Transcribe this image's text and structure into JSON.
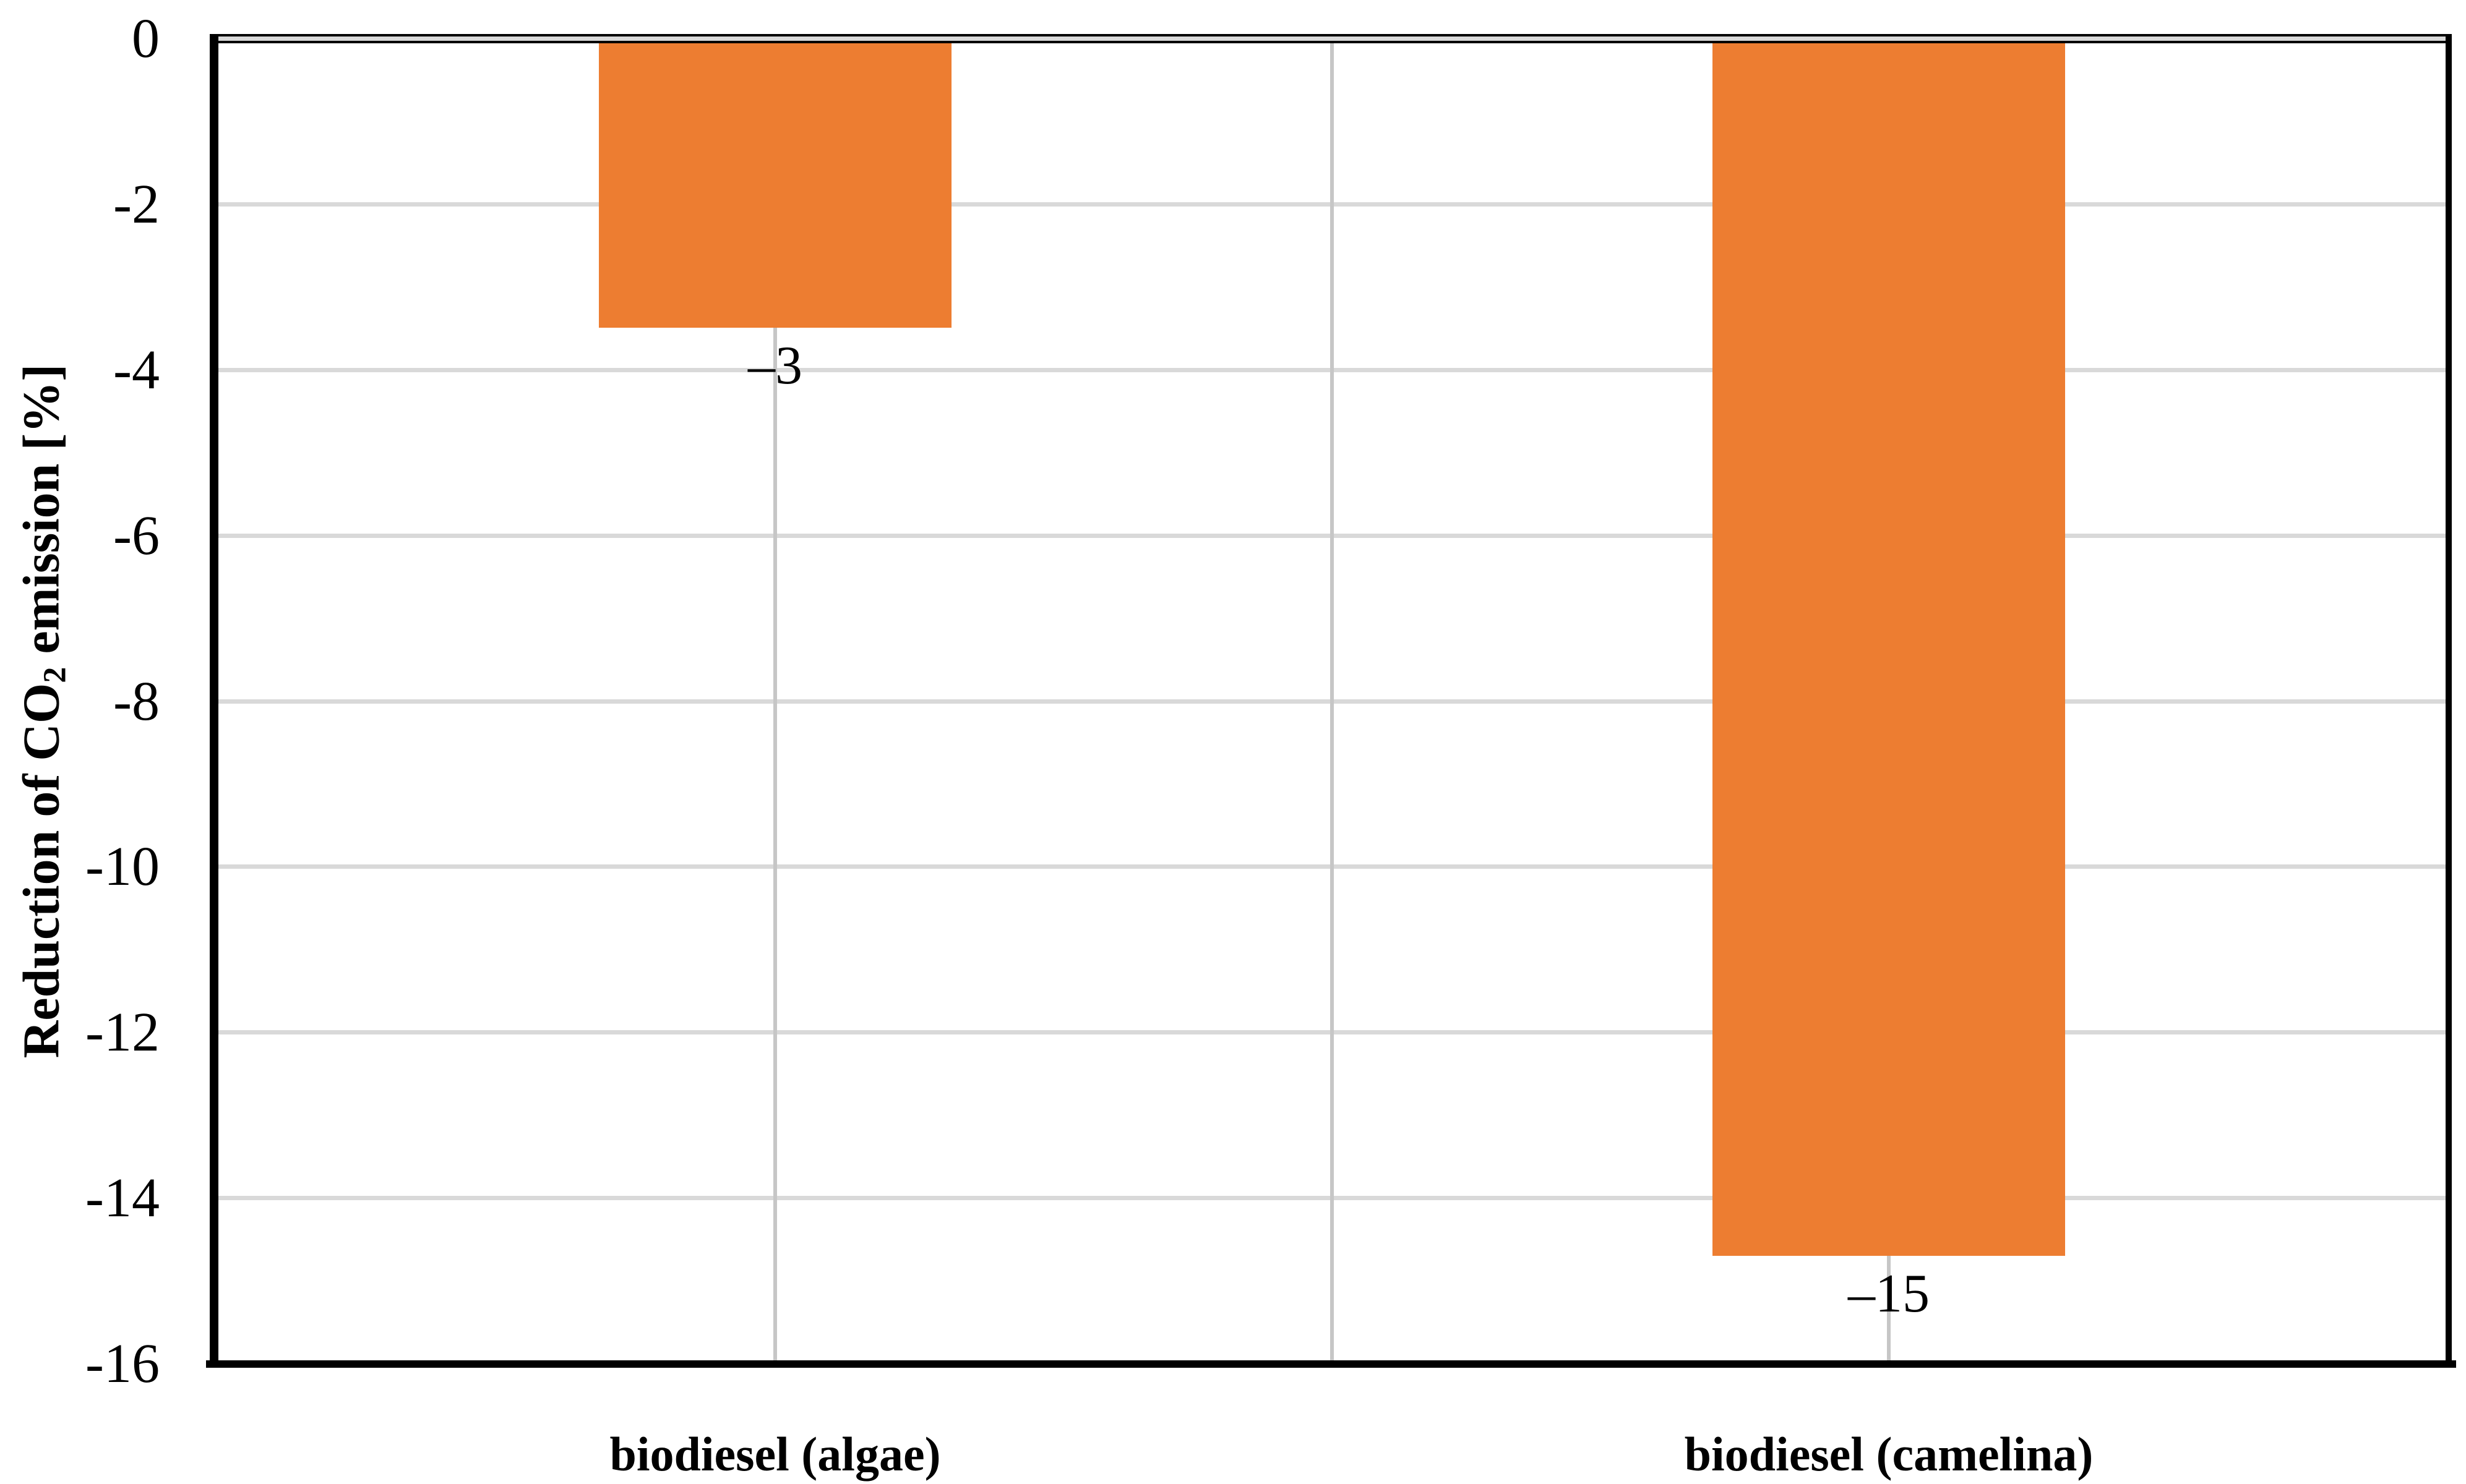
{
  "chart_data": {
    "type": "bar",
    "title": "",
    "categories": [
      "biodiesel (algae)",
      "biodiesel (camelina)"
    ],
    "values": [
      -3,
      -15
    ],
    "plotted_values": [
      -3.49,
      -14.69
    ],
    "data_labels": [
      "–3",
      "–15"
    ],
    "series": [
      {
        "name": "Reduction of CO2 emission",
        "values": [
          -3,
          -15
        ]
      }
    ],
    "xlabel": "",
    "ylabel": "Reduction of CO2 emission [%]",
    "ylabel_parts": {
      "pre": "Reduction of CO",
      "sub": "2",
      "post": " emission [%]"
    },
    "y_ticks": [
      "0",
      "-2",
      "-4",
      "-6",
      "-8",
      "-10",
      "-12",
      "-14",
      "-16"
    ],
    "y_tick_values": [
      0,
      -2,
      -4,
      -6,
      -8,
      -10,
      -12,
      -14,
      -16
    ],
    "ylim": [
      0,
      -16
    ],
    "gridlines_y_at": [
      -2,
      -4,
      -6,
      -8,
      -10,
      -12,
      -14
    ],
    "grid": "horizontal gray lines every 2 units; vertical gray lines at category centers and category boundary",
    "legend": "none",
    "bar_color": "#ED7D31",
    "h_gridline_color": "#D9D9D9",
    "v_gridline_color": "#C6C6C6",
    "zero_band_gray": "#D9D9D9",
    "axis_color": "#000000",
    "background_color": "#FFFFFF"
  }
}
